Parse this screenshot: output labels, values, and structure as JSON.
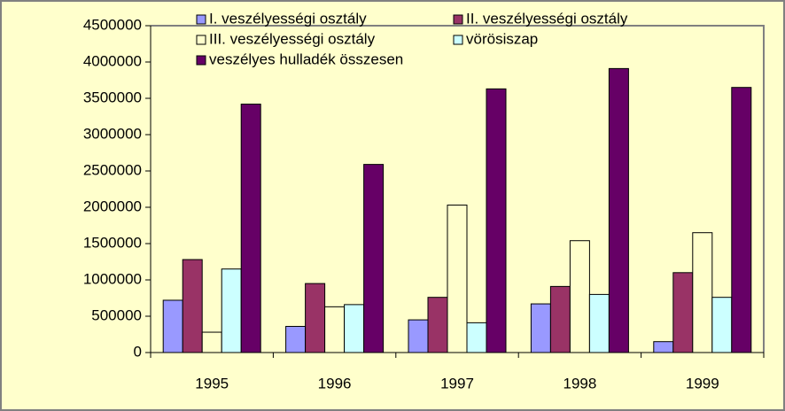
{
  "chart_data": {
    "type": "bar",
    "categories": [
      "1995",
      "1996",
      "1997",
      "1998",
      "1999"
    ],
    "series": [
      {
        "name": "I. veszélyességi osztály",
        "color": "#9999ff",
        "values": [
          720000,
          360000,
          450000,
          670000,
          150000
        ]
      },
      {
        "name": "II. veszélyességi osztály",
        "color": "#993366",
        "values": [
          1280000,
          950000,
          760000,
          910000,
          1100000
        ]
      },
      {
        "name": "III. veszélyességi osztály",
        "color": "#ffffcc",
        "values": [
          280000,
          630000,
          2030000,
          1540000,
          1650000
        ]
      },
      {
        "name": "vörösiszap",
        "color": "#ccffff",
        "values": [
          1150000,
          660000,
          410000,
          800000,
          760000
        ]
      },
      {
        "name": "veszélyes hulladék összesen",
        "color": "#660066",
        "values": [
          3420000,
          2590000,
          3630000,
          3910000,
          3650000
        ]
      }
    ],
    "ylim": [
      0,
      4500000
    ],
    "yticks": [
      0,
      500000,
      1000000,
      1500000,
      2000000,
      2500000,
      3000000,
      3500000,
      4000000,
      4500000
    ],
    "legend": "top"
  }
}
